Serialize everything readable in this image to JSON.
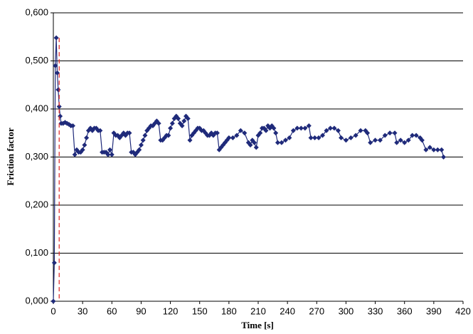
{
  "chart_data": {
    "type": "line",
    "x_label": "Time [s]",
    "y_label": "Friction factor",
    "x": [
      0,
      1,
      2,
      3,
      4,
      5,
      6,
      7,
      8,
      10,
      12,
      14,
      16,
      18,
      20,
      22,
      24,
      26,
      28,
      30,
      32,
      34,
      36,
      38,
      40,
      42,
      44,
      46,
      48,
      50,
      52,
      54,
      56,
      58,
      60,
      62,
      64,
      66,
      68,
      70,
      72,
      74,
      76,
      78,
      80,
      82,
      84,
      86,
      88,
      90,
      92,
      94,
      96,
      98,
      100,
      102,
      104,
      106,
      108,
      110,
      112,
      114,
      116,
      118,
      120,
      122,
      124,
      126,
      128,
      130,
      132,
      134,
      136,
      138,
      140,
      142,
      144,
      146,
      148,
      150,
      152,
      154,
      156,
      158,
      160,
      162,
      164,
      166,
      168,
      170,
      172,
      174,
      176,
      178,
      180,
      184,
      188,
      192,
      196,
      200,
      202,
      204,
      206,
      208,
      210,
      212,
      214,
      216,
      218,
      220,
      222,
      224,
      226,
      228,
      230,
      234,
      238,
      242,
      246,
      250,
      254,
      258,
      262,
      264,
      268,
      272,
      276,
      280,
      284,
      288,
      292,
      295,
      300,
      305,
      310,
      315,
      320,
      322,
      325,
      330,
      335,
      340,
      345,
      350,
      352,
      356,
      360,
      364,
      368,
      372,
      376,
      378,
      382,
      386,
      390,
      394,
      398,
      400
    ],
    "series": [
      {
        "name": "Friction factor",
        "color": "#1f2a7a",
        "values": [
          0,
          0.08,
          0.49,
          0.548,
          0.475,
          0.44,
          0.405,
          0.385,
          0.37,
          0.37,
          0.372,
          0.37,
          0.368,
          0.365,
          0.365,
          0.305,
          0.315,
          0.31,
          0.31,
          0.315,
          0.325,
          0.34,
          0.355,
          0.36,
          0.355,
          0.36,
          0.36,
          0.355,
          0.355,
          0.31,
          0.31,
          0.31,
          0.305,
          0.315,
          0.305,
          0.35,
          0.345,
          0.345,
          0.34,
          0.345,
          0.35,
          0.345,
          0.35,
          0.35,
          0.31,
          0.31,
          0.305,
          0.31,
          0.315,
          0.325,
          0.335,
          0.345,
          0.355,
          0.36,
          0.365,
          0.365,
          0.37,
          0.375,
          0.37,
          0.335,
          0.335,
          0.34,
          0.345,
          0.345,
          0.36,
          0.37,
          0.38,
          0.385,
          0.38,
          0.37,
          0.365,
          0.375,
          0.385,
          0.38,
          0.335,
          0.345,
          0.35,
          0.355,
          0.36,
          0.36,
          0.355,
          0.355,
          0.35,
          0.345,
          0.345,
          0.35,
          0.345,
          0.35,
          0.35,
          0.315,
          0.32,
          0.325,
          0.33,
          0.335,
          0.34,
          0.34,
          0.345,
          0.355,
          0.35,
          0.33,
          0.325,
          0.335,
          0.33,
          0.32,
          0.345,
          0.35,
          0.36,
          0.36,
          0.355,
          0.365,
          0.36,
          0.365,
          0.36,
          0.35,
          0.33,
          0.33,
          0.335,
          0.34,
          0.355,
          0.36,
          0.36,
          0.36,
          0.365,
          0.34,
          0.34,
          0.34,
          0.345,
          0.355,
          0.36,
          0.36,
          0.355,
          0.34,
          0.335,
          0.34,
          0.345,
          0.355,
          0.355,
          0.35,
          0.33,
          0.335,
          0.335,
          0.345,
          0.35,
          0.35,
          0.33,
          0.335,
          0.33,
          0.335,
          0.345,
          0.345,
          0.34,
          0.335,
          0.315,
          0.32,
          0.315,
          0.315,
          0.315,
          0.3
        ]
      }
    ],
    "reference_line": {
      "x": 6,
      "color": "#e03030"
    },
    "xlim": [
      0,
      420
    ],
    "xticks": [
      0,
      30,
      60,
      90,
      120,
      150,
      180,
      210,
      240,
      270,
      300,
      330,
      360,
      390,
      420
    ],
    "ylim": [
      0,
      0.6
    ],
    "yticks": [
      {
        "value": 0,
        "label": "0,000"
      },
      {
        "value": 0.1,
        "label": "0,100"
      },
      {
        "value": 0.2,
        "label": "0,200"
      },
      {
        "value": 0.3,
        "label": "0,300"
      },
      {
        "value": 0.4,
        "label": "0,400"
      },
      {
        "value": 0.5,
        "label": "0,500"
      },
      {
        "value": 0.6,
        "label": "0,600"
      }
    ],
    "grid": true
  }
}
